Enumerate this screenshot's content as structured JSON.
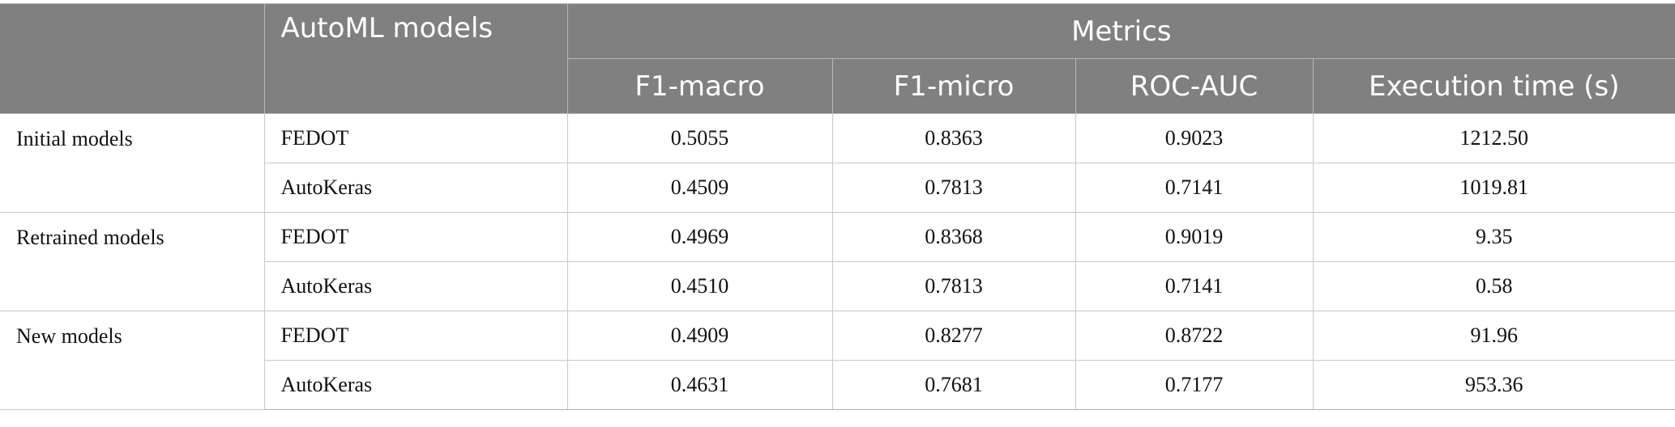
{
  "header": {
    "automl_models": "AutoML models",
    "metrics": "Metrics",
    "columns": [
      "F1-macro",
      "F1-micro",
      "ROC-AUC",
      "Execution time (s)"
    ]
  },
  "groups": [
    {
      "label": "Initial models",
      "rows": [
        {
          "model": "FEDOT",
          "f1_macro": "0.5055",
          "f1_micro": "0.8363",
          "roc_auc": "0.9023",
          "exec_time": "1212.50"
        },
        {
          "model": "AutoKeras",
          "f1_macro": "0.4509",
          "f1_micro": "0.7813",
          "roc_auc": "0.7141",
          "exec_time": "1019.81"
        }
      ]
    },
    {
      "label": "Retrained models",
      "rows": [
        {
          "model": "FEDOT",
          "f1_macro": "0.4969",
          "f1_micro": "0.8368",
          "roc_auc": "0.9019",
          "exec_time": "9.35"
        },
        {
          "model": "AutoKeras",
          "f1_macro": "0.4510",
          "f1_micro": "0.7813",
          "roc_auc": "0.7141",
          "exec_time": "0.58"
        }
      ]
    },
    {
      "label": "New models",
      "rows": [
        {
          "model": "FEDOT",
          "f1_macro": "0.4909",
          "f1_micro": "0.8277",
          "roc_auc": "0.8722",
          "exec_time": "91.96"
        },
        {
          "model": "AutoKeras",
          "f1_macro": "0.4631",
          "f1_micro": "0.7681",
          "roc_auc": "0.7177",
          "exec_time": "953.36"
        }
      ]
    }
  ]
}
